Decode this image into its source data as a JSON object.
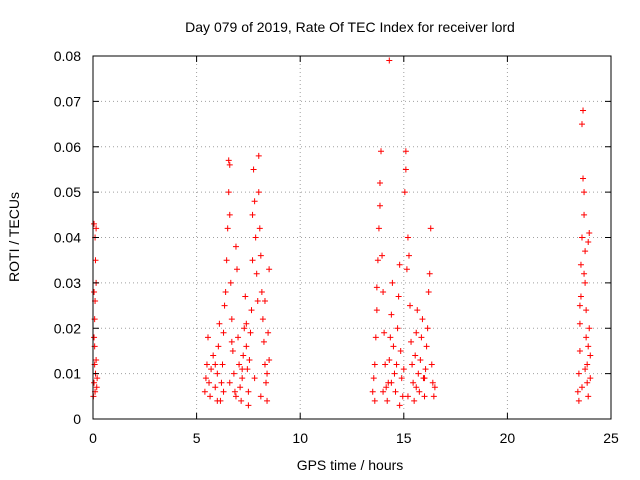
{
  "chart_data": {
    "type": "scatter",
    "title": "Day 079 of 2019, Rate Of TEC Index for receiver lord",
    "xlabel": "GPS time / hours",
    "ylabel": "ROTI / TECUs",
    "xlim": [
      0,
      25
    ],
    "ylim": [
      0,
      0.08
    ],
    "x_ticks": [
      "0",
      "5",
      "10",
      "15",
      "20",
      "25"
    ],
    "y_ticks": [
      "0",
      "0.01",
      "0.02",
      "0.03",
      "0.04",
      "0.05",
      "0.06",
      "0.07",
      "0.08"
    ],
    "grid": true,
    "marker": "+",
    "colors": {
      "points": "#ff0000",
      "grid": "#a0a0a0",
      "frame": "#000000"
    },
    "series": [
      {
        "points": [
          [
            0.02,
            0.005
          ],
          [
            0.05,
            0.008
          ],
          [
            0.08,
            0.012
          ],
          [
            0.1,
            0.006
          ],
          [
            0.12,
            0.01
          ],
          [
            0.15,
            0.013
          ],
          [
            0.05,
            0.018
          ],
          [
            0.08,
            0.022
          ],
          [
            0.1,
            0.026
          ],
          [
            0.05,
            0.028
          ],
          [
            0.12,
            0.035
          ],
          [
            0.1,
            0.04
          ],
          [
            0.15,
            0.042
          ],
          [
            0.05,
            0.043
          ],
          [
            0.15,
            0.03
          ],
          [
            0.08,
            0.016
          ],
          [
            0.2,
            0.009
          ],
          [
            0.18,
            0.007
          ],
          [
            5.4,
            0.006
          ],
          [
            5.45,
            0.009
          ],
          [
            5.5,
            0.012
          ],
          [
            5.55,
            0.018
          ],
          [
            5.6,
            0.008
          ],
          [
            5.65,
            0.005
          ],
          [
            5.7,
            0.011
          ],
          [
            5.8,
            0.014
          ],
          [
            5.9,
            0.007
          ],
          [
            6.0,
            0.01
          ],
          [
            6.05,
            0.016
          ],
          [
            6.1,
            0.021
          ],
          [
            6.15,
            0.004
          ],
          [
            6.2,
            0.008
          ],
          [
            6.25,
            0.012
          ],
          [
            6.3,
            0.019
          ],
          [
            6.35,
            0.025
          ],
          [
            6.4,
            0.028
          ],
          [
            6.45,
            0.035
          ],
          [
            6.5,
            0.042
          ],
          [
            6.55,
            0.05
          ],
          [
            6.55,
            0.057
          ],
          [
            6.6,
            0.056
          ],
          [
            6.6,
            0.045
          ],
          [
            6.65,
            0.03
          ],
          [
            6.7,
            0.022
          ],
          [
            6.75,
            0.015
          ],
          [
            6.8,
            0.01
          ],
          [
            6.85,
            0.006
          ],
          [
            6.9,
            0.038
          ],
          [
            6.95,
            0.033
          ],
          [
            7.0,
            0.018
          ],
          [
            7.05,
            0.012
          ],
          [
            7.1,
            0.007
          ],
          [
            7.15,
            0.004
          ],
          [
            7.2,
            0.009
          ],
          [
            7.25,
            0.014
          ],
          [
            7.3,
            0.02
          ],
          [
            7.35,
            0.027
          ],
          [
            7.4,
            0.016
          ],
          [
            7.45,
            0.011
          ],
          [
            7.5,
            0.006
          ],
          [
            7.55,
            0.013
          ],
          [
            7.6,
            0.019
          ],
          [
            7.65,
            0.024
          ],
          [
            7.7,
            0.035
          ],
          [
            7.7,
            0.045
          ],
          [
            7.75,
            0.055
          ],
          [
            7.8,
            0.048
          ],
          [
            7.85,
            0.04
          ],
          [
            7.9,
            0.032
          ],
          [
            7.95,
            0.026
          ],
          [
            8.0,
            0.05
          ],
          [
            8.0,
            0.058
          ],
          [
            8.05,
            0.042
          ],
          [
            8.1,
            0.036
          ],
          [
            8.15,
            0.028
          ],
          [
            8.2,
            0.022
          ],
          [
            8.25,
            0.017
          ],
          [
            8.3,
            0.012
          ],
          [
            8.35,
            0.008
          ],
          [
            8.4,
            0.004
          ],
          [
            8.45,
            0.019
          ],
          [
            8.5,
            0.013
          ],
          [
            8.5,
            0.033
          ],
          [
            8.3,
            0.026
          ],
          [
            6.0,
            0.004
          ],
          [
            6.3,
            0.006
          ],
          [
            6.6,
            0.008
          ],
          [
            6.9,
            0.005
          ],
          [
            7.2,
            0.011
          ],
          [
            7.5,
            0.003
          ],
          [
            7.8,
            0.009
          ],
          [
            8.1,
            0.005
          ],
          [
            8.4,
            0.01
          ],
          [
            5.9,
            0.012
          ],
          [
            6.7,
            0.017
          ],
          [
            7.4,
            0.021
          ],
          [
            13.5,
            0.006
          ],
          [
            13.55,
            0.009
          ],
          [
            13.6,
            0.012
          ],
          [
            13.65,
            0.018
          ],
          [
            13.7,
            0.024
          ],
          [
            13.7,
            0.029
          ],
          [
            13.75,
            0.035
          ],
          [
            13.8,
            0.042
          ],
          [
            13.85,
            0.047
          ],
          [
            13.85,
            0.052
          ],
          [
            13.9,
            0.059
          ],
          [
            13.95,
            0.036
          ],
          [
            14.0,
            0.028
          ],
          [
            14.05,
            0.019
          ],
          [
            14.1,
            0.012
          ],
          [
            14.15,
            0.007
          ],
          [
            14.2,
            0.004
          ],
          [
            14.25,
            0.008
          ],
          [
            14.3,
            0.079
          ],
          [
            14.3,
            0.013
          ],
          [
            14.35,
            0.018
          ],
          [
            14.4,
            0.023
          ],
          [
            14.45,
            0.03
          ],
          [
            14.5,
            0.016
          ],
          [
            14.55,
            0.01
          ],
          [
            14.6,
            0.006
          ],
          [
            14.65,
            0.012
          ],
          [
            14.7,
            0.02
          ],
          [
            14.75,
            0.027
          ],
          [
            14.8,
            0.034
          ],
          [
            14.85,
            0.015
          ],
          [
            14.9,
            0.009
          ],
          [
            14.95,
            0.005
          ],
          [
            15.0,
            0.011
          ],
          [
            15.05,
            0.05
          ],
          [
            15.1,
            0.055
          ],
          [
            15.1,
            0.059
          ],
          [
            15.15,
            0.033
          ],
          [
            15.2,
            0.04
          ],
          [
            15.25,
            0.036
          ],
          [
            15.3,
            0.025
          ],
          [
            15.35,
            0.017
          ],
          [
            15.4,
            0.012
          ],
          [
            15.45,
            0.008
          ],
          [
            15.5,
            0.004
          ],
          [
            15.55,
            0.014
          ],
          [
            15.6,
            0.019
          ],
          [
            15.65,
            0.024
          ],
          [
            15.7,
            0.01
          ],
          [
            15.75,
            0.006
          ],
          [
            15.8,
            0.013
          ],
          [
            15.85,
            0.018
          ],
          [
            15.9,
            0.022
          ],
          [
            15.95,
            0.009
          ],
          [
            16.0,
            0.005
          ],
          [
            16.05,
            0.011
          ],
          [
            16.1,
            0.016
          ],
          [
            16.15,
            0.02
          ],
          [
            16.2,
            0.028
          ],
          [
            16.25,
            0.032
          ],
          [
            16.3,
            0.042
          ],
          [
            16.35,
            0.012
          ],
          [
            16.4,
            0.008
          ],
          [
            16.45,
            0.005
          ],
          [
            16.5,
            0.007
          ],
          [
            13.6,
            0.004
          ],
          [
            14.0,
            0.006
          ],
          [
            14.4,
            0.008
          ],
          [
            14.8,
            0.003
          ],
          [
            15.2,
            0.005
          ],
          [
            15.6,
            0.007
          ],
          [
            16.0,
            0.009
          ],
          [
            23.4,
            0.006
          ],
          [
            23.45,
            0.01
          ],
          [
            23.5,
            0.015
          ],
          [
            23.5,
            0.021
          ],
          [
            23.55,
            0.027
          ],
          [
            23.55,
            0.034
          ],
          [
            23.6,
            0.04
          ],
          [
            23.6,
            0.065
          ],
          [
            23.65,
            0.068
          ],
          [
            23.65,
            0.053
          ],
          [
            23.7,
            0.05
          ],
          [
            23.7,
            0.045
          ],
          [
            23.75,
            0.037
          ],
          [
            23.75,
            0.03
          ],
          [
            23.8,
            0.024
          ],
          [
            23.8,
            0.018
          ],
          [
            23.85,
            0.012
          ],
          [
            23.85,
            0.008
          ],
          [
            23.9,
            0.005
          ],
          [
            23.9,
            0.039
          ],
          [
            23.95,
            0.041
          ],
          [
            23.95,
            0.02
          ],
          [
            24.0,
            0.014
          ],
          [
            24.0,
            0.009
          ],
          [
            23.45,
            0.004
          ],
          [
            23.6,
            0.007
          ],
          [
            23.75,
            0.011
          ],
          [
            23.9,
            0.016
          ],
          [
            23.5,
            0.025
          ],
          [
            23.7,
            0.032
          ]
        ]
      }
    ]
  }
}
